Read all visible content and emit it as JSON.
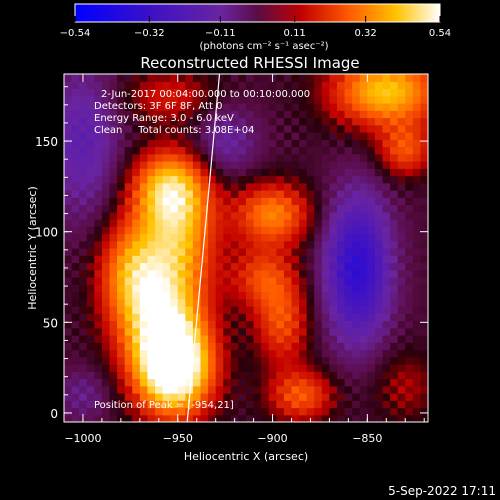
{
  "chart_data": {
    "type": "heatmap",
    "title": "Reconstructed RHESSI Image",
    "info": [
      "2-Jun-2017 00:04:00.000 to 00:10:00.000",
      "Detectors: 3F 6F 8F, Att 0",
      "Energy Range: 3.0 - 6.0 keV",
      "Clean     Total counts: 3.08E+04"
    ],
    "peak_label": "Position of Peak = [-954,21]",
    "peak": {
      "x": -954,
      "y": 21
    },
    "xlabel": "Heliocentric X (arcsec)",
    "ylabel": "Heliocentric Y (arcsec)",
    "xlim": [
      -1010,
      -818
    ],
    "ylim": [
      -5,
      187
    ],
    "xticks": [
      -1000,
      -950,
      -900,
      -850
    ],
    "xtick_labels": [
      "−1000",
      "−950",
      "−900",
      "−850"
    ],
    "yticks": [
      0,
      50,
      100,
      150
    ],
    "ytick_labels": [
      "0",
      "50",
      "100",
      "150"
    ],
    "colorbar": {
      "range": [
        -0.54,
        0.54
      ],
      "ticks": [
        -0.54,
        -0.32,
        -0.11,
        0.11,
        0.32,
        0.54
      ],
      "tick_labels": [
        "−0.54",
        "−0.32",
        "−0.11",
        "0.11",
        "0.32",
        "0.54"
      ],
      "unit_text": "(photons cm⁻² s⁻¹ asec⁻²)"
    },
    "limb_line": [
      [
        -945,
        -5
      ],
      [
        -941,
        40
      ],
      [
        -937,
        85
      ],
      [
        -933,
        130
      ],
      [
        -928,
        187
      ]
    ],
    "sources": [
      {
        "x": -952,
        "y": 25,
        "amp": 0.62,
        "sx": 14,
        "sy": 18
      },
      {
        "x": -960,
        "y": 55,
        "amp": 0.36,
        "sx": 16,
        "sy": 22
      },
      {
        "x": -950,
        "y": 100,
        "amp": 0.34,
        "sx": 14,
        "sy": 24
      },
      {
        "x": -955,
        "y": 125,
        "amp": 0.3,
        "sx": 14,
        "sy": 14
      },
      {
        "x": -975,
        "y": 80,
        "amp": 0.26,
        "sx": 12,
        "sy": 20
      },
      {
        "x": -900,
        "y": 110,
        "amp": 0.3,
        "sx": 14,
        "sy": 12
      },
      {
        "x": -905,
        "y": 75,
        "amp": 0.2,
        "sx": 12,
        "sy": 12
      },
      {
        "x": -895,
        "y": 50,
        "amp": 0.22,
        "sx": 10,
        "sy": 16
      },
      {
        "x": -885,
        "y": 10,
        "amp": 0.24,
        "sx": 12,
        "sy": 10
      },
      {
        "x": -840,
        "y": 178,
        "amp": 0.4,
        "sx": 20,
        "sy": 14
      },
      {
        "x": -830,
        "y": 145,
        "amp": 0.22,
        "sx": 10,
        "sy": 10
      },
      {
        "x": -955,
        "y": 175,
        "amp": 0.14,
        "sx": 18,
        "sy": 10
      },
      {
        "x": -830,
        "y": 15,
        "amp": 0.1,
        "sx": 12,
        "sy": 14
      }
    ],
    "negatives": [
      {
        "x": -855,
        "y": 80,
        "amp": -0.38,
        "sx": 12,
        "sy": 28
      },
      {
        "x": -1000,
        "y": 150,
        "amp": -0.18,
        "sx": 14,
        "sy": 30
      },
      {
        "x": -925,
        "y": 150,
        "amp": -0.14,
        "sx": 12,
        "sy": 14
      },
      {
        "x": -1000,
        "y": 10,
        "amp": -0.1,
        "sx": 10,
        "sy": 10
      }
    ],
    "background": 0.02
  },
  "footer": {
    "timestamp": "5-Sep-2022 17:11"
  }
}
